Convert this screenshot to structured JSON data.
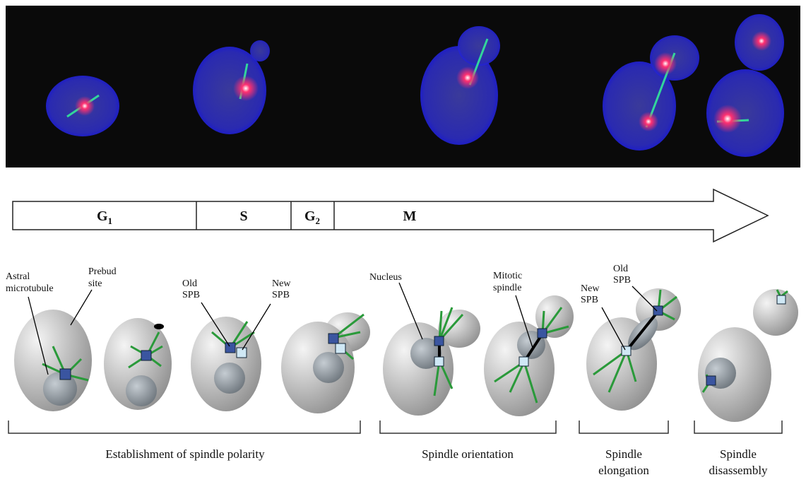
{
  "phases": [
    {
      "label": "G",
      "sub": "1"
    },
    {
      "label": "S"
    },
    {
      "label": "G",
      "sub": "2"
    },
    {
      "label": "M"
    }
  ],
  "labels": [
    {
      "lines": [
        "Astral",
        "microtubule"
      ]
    },
    {
      "lines": [
        "Prebud",
        "site"
      ]
    },
    {
      "lines": [
        "Old",
        "SPB"
      ]
    },
    {
      "lines": [
        "New",
        "SPB"
      ]
    },
    {
      "lines": [
        "Nucleus"
      ]
    },
    {
      "lines": [
        "Mitotic",
        "spindle"
      ]
    },
    {
      "lines": [
        "New",
        "SPB"
      ]
    },
    {
      "lines": [
        "Old",
        "SPB"
      ]
    }
  ],
  "sections": [
    {
      "lines": [
        "Establishment of spindle polarity"
      ]
    },
    {
      "lines": [
        "Spindle orientation"
      ]
    },
    {
      "lines": [
        "Spindle",
        "elongation"
      ]
    },
    {
      "lines": [
        "Spindle",
        "disassembly"
      ]
    }
  ]
}
